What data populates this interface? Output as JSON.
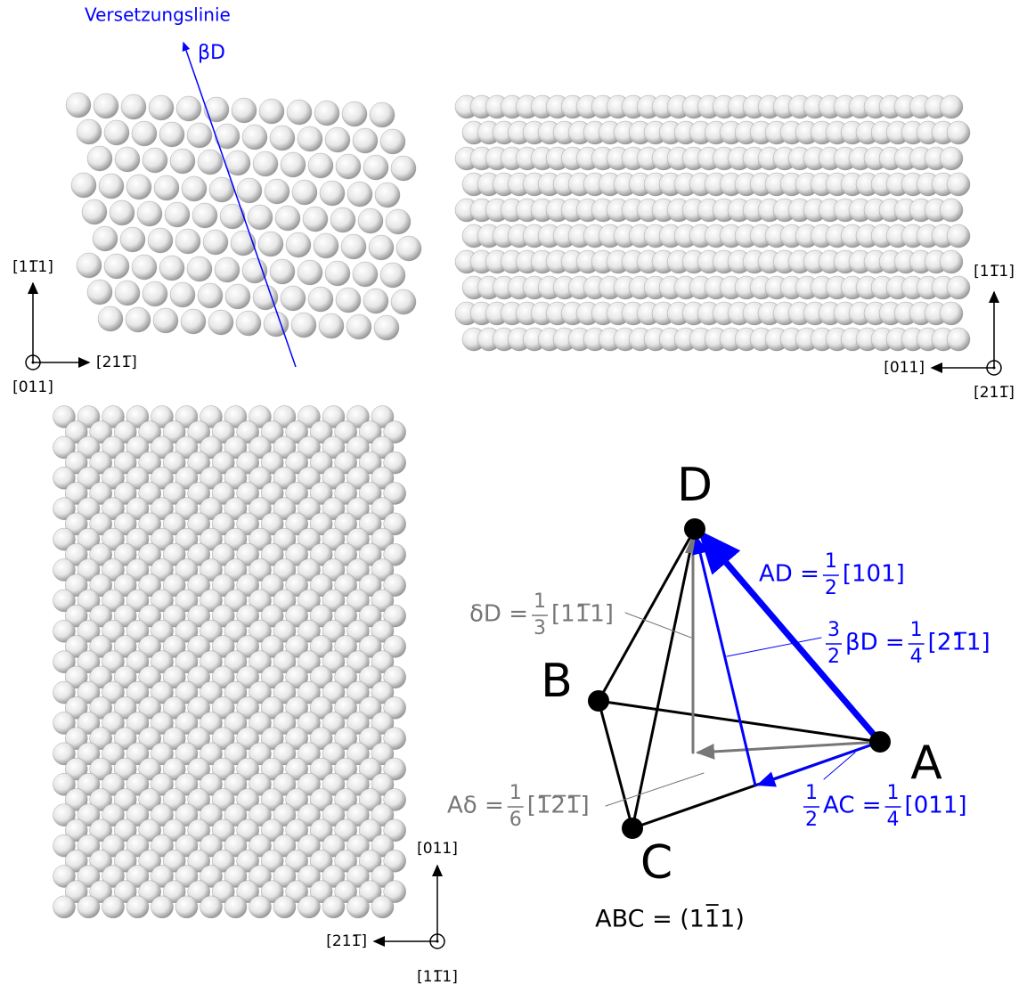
{
  "panel_top_left": {
    "line_label": "Versetzungslinie",
    "burgers_label": "βD",
    "axis_up": "[11̅1]",
    "axis_right": "[211̅]",
    "axis_out": "[011]"
  },
  "panel_top_right": {
    "axis_up": "[11̅1]",
    "axis_left": "[011]",
    "axis_out": "[211̅]"
  },
  "panel_bottom_left": {
    "axis_up": "[011]",
    "axis_left": "[211̅]",
    "axis_out": "[11̅1]"
  },
  "tetrahedron": {
    "vertices": [
      "D",
      "B",
      "A",
      "C"
    ],
    "plane": "ABC = (11̅1)",
    "annotations": [
      {
        "lhs": "AD =",
        "num": "1",
        "den": "2",
        "rhs": "[101]"
      },
      {
        "pre_num": "3",
        "pre_den": "2",
        "lhs": "βD =",
        "num": "1",
        "den": "4",
        "rhs": "[21̅1]"
      },
      {
        "lhs": "δD =",
        "num": "1",
        "den": "3",
        "rhs": "[11̅1]"
      },
      {
        "lhs": "Aδ =",
        "num": "1",
        "den": "6",
        "rhs": "[1̅2̅1̅]"
      },
      {
        "pre_num": "1",
        "pre_den": "2",
        "lhs": "AC =",
        "num": "1",
        "den": "4",
        "rhs": "[011]"
      }
    ]
  }
}
